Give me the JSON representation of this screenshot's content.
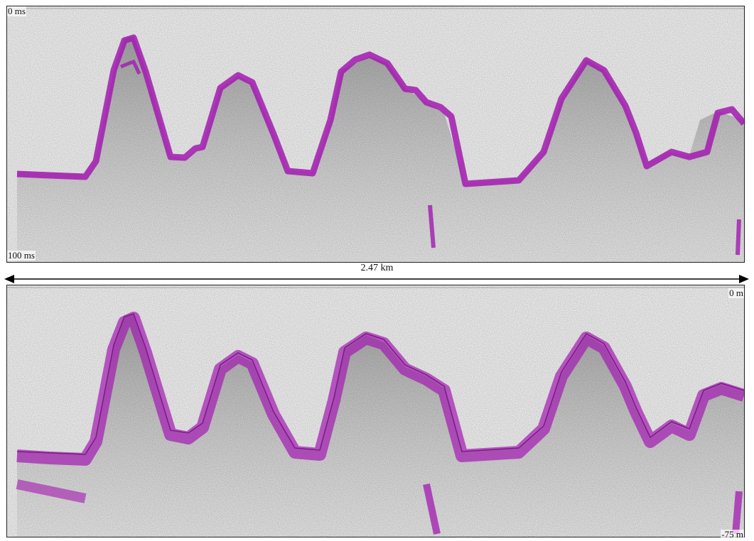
{
  "labels": {
    "top_left": "0 ms",
    "bottom_left": "100 ms",
    "scale": "2.47 km",
    "right_top": "0 m",
    "right_bottom": "-75 m"
  },
  "colors": {
    "reflector": "#a21ab0",
    "background": "#f7f7f7",
    "noise": "#9a9a9a"
  }
}
